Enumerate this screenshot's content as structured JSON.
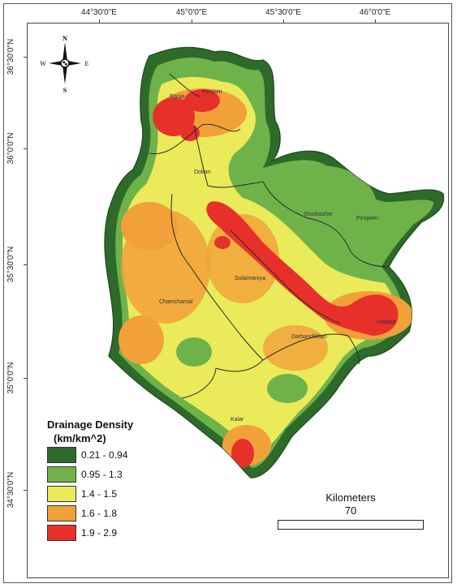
{
  "map": {
    "longitude_ticks": [
      "44°30'0\"E",
      "45°0'0\"E",
      "45°30'0\"E",
      "46°0'0\"E"
    ],
    "latitude_ticks": [
      "36°30'0\"N",
      "36°0'0\"N",
      "35°30'0\"N",
      "35°0'0\"N",
      "34°30'0\"N"
    ],
    "compass": {
      "n": "N",
      "s": "S",
      "e": "E",
      "w": "W"
    },
    "district_labels": [
      "Rania",
      "Penjwin",
      "Dokan",
      "Sharbazher",
      "Penjwen",
      "Sulaimaniya",
      "Chamchamal",
      "Halabja",
      "Darbandikhan",
      "Kalar"
    ]
  },
  "legend": {
    "title_line1": "Drainage Density",
    "title_line2": "(km/km^2)",
    "items": [
      {
        "label": "0.21 - 0.94",
        "color": "#2e6b2a"
      },
      {
        "label": "0.95 - 1.3",
        "color": "#6fb24a"
      },
      {
        "label": "1.4 - 1.5",
        "color": "#eaea5a"
      },
      {
        "label": "1.6 - 1.8",
        "color": "#f2a03a"
      },
      {
        "label": "1.9 - 2.9",
        "color": "#e8302a"
      }
    ]
  },
  "scale": {
    "units": "Kilometers",
    "value": "70"
  }
}
